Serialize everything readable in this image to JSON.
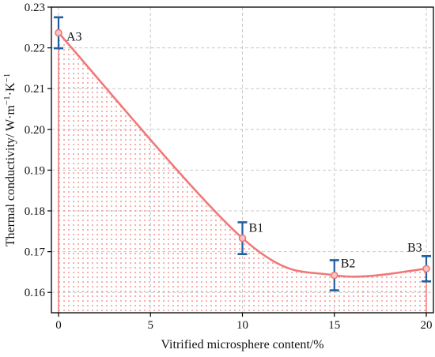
{
  "chart_data": {
    "type": "area",
    "title": "",
    "xlabel": "Vitrified microsphere content/%",
    "ylabel": "Thermal conductivity/ W·m",
    "ylabel_unit_parts": [
      "−1",
      "·K",
      "−1"
    ],
    "xlim": [
      0,
      20
    ],
    "ylim": [
      0.155,
      0.23
    ],
    "x_ticks": [
      "0",
      "5",
      "10",
      "15",
      "20"
    ],
    "y_ticks": [
      "0.16",
      "0.17",
      "0.18",
      "0.19",
      "0.20",
      "0.21",
      "0.22",
      "0.23"
    ],
    "grid": true,
    "series": [
      {
        "x": [
          0,
          10,
          15,
          20
        ],
        "y": [
          0.2237,
          0.1733,
          0.1642,
          0.1658
        ],
        "error": [
          0.0038,
          0.0039,
          0.0037,
          0.0031
        ],
        "point_labels": [
          "A3",
          "B1",
          "B2",
          "B3"
        ]
      }
    ],
    "colors": {
      "line": "#f07878",
      "marker": "#f07878",
      "fill_dots": "#f07878",
      "error_bar": "#1f5fa0",
      "grid": "#c8c8c8",
      "axis": "#000000"
    }
  }
}
